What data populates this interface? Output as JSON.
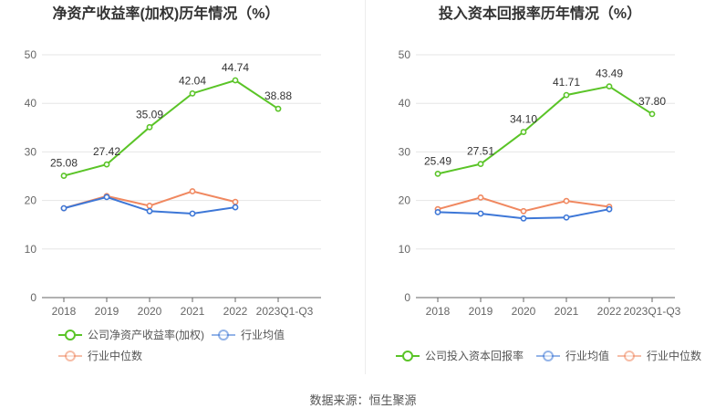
{
  "chart_data": [
    {
      "type": "line",
      "title": "净资产收益率(加权)历年情况（%）",
      "categories": [
        "2018",
        "2019",
        "2020",
        "2021",
        "2022",
        "2023Q1-Q3"
      ],
      "ylim": [
        0,
        50
      ],
      "yticks": [
        "0",
        "10",
        "20",
        "30",
        "40",
        "50"
      ],
      "grid": true,
      "legend_position": "bottom",
      "series": [
        {
          "name": "公司净资产收益率(加权)",
          "color": "#5ac427",
          "labels": true,
          "values": [
            25.08,
            27.42,
            35.09,
            42.04,
            44.74,
            38.88
          ],
          "value_labels": [
            "25.08",
            "27.42",
            "35.09",
            "42.04",
            "44.74",
            "38.88"
          ]
        },
        {
          "name": "行业均值",
          "color": "#3d77d7",
          "labels": false,
          "values": [
            18.4,
            20.7,
            17.8,
            17.3,
            18.6,
            null
          ]
        },
        {
          "name": "行业中位数",
          "color": "#f08860",
          "labels": false,
          "values": [
            18.4,
            20.9,
            18.9,
            21.9,
            19.7,
            null
          ]
        }
      ]
    },
    {
      "type": "line",
      "title": "投入资本回报率历年情况（%）",
      "categories": [
        "2018",
        "2019",
        "2020",
        "2021",
        "2022",
        "2023Q1-Q3"
      ],
      "ylim": [
        0,
        50
      ],
      "yticks": [
        "0",
        "10",
        "20",
        "30",
        "40",
        "50"
      ],
      "grid": true,
      "legend_position": "bottom",
      "series": [
        {
          "name": "公司投入资本回报率",
          "color": "#5ac427",
          "labels": true,
          "values": [
            25.49,
            27.51,
            34.1,
            41.71,
            43.49,
            37.8
          ],
          "value_labels": [
            "25.49",
            "27.51",
            "34.10",
            "41.71",
            "43.49",
            "37.80"
          ]
        },
        {
          "name": "行业均值",
          "color": "#3d77d7",
          "labels": false,
          "values": [
            17.6,
            17.3,
            16.3,
            16.5,
            18.2,
            null
          ]
        },
        {
          "name": "行业中位数",
          "color": "#f08860",
          "labels": false,
          "values": [
            18.2,
            20.6,
            17.8,
            19.9,
            18.7,
            null
          ]
        }
      ]
    }
  ],
  "footer": {
    "source": "数据来源：恒生聚源"
  }
}
